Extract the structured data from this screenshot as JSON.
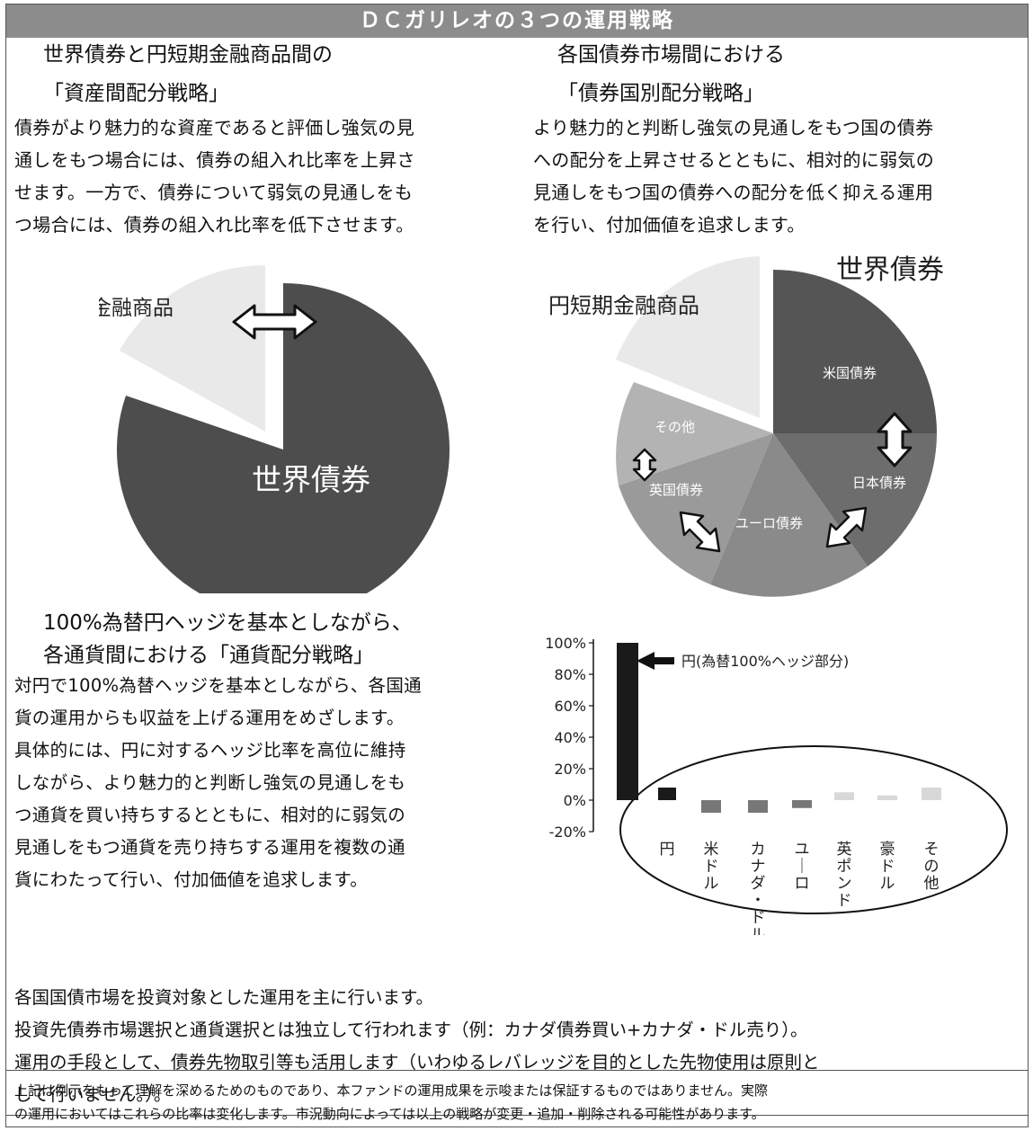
{
  "title": "ＤＣガリレオの３つの運用戦略",
  "strategy1": {
    "heading": [
      "世界債券と円短期金融商品間の",
      "「資産間配分戦略」"
    ],
    "body": [
      "債券がより魅力的な資産であると評価し強気の見",
      "通しをもつ場合には、債券の組入れ比率を上昇さ",
      "せます。一方で、債券について弱気の見通しをも",
      "つ場合には、債券の組入れ比率を低下させます。"
    ],
    "pie": {
      "label_short_term": "円短期金融商品",
      "label_world_bond": "世界債券"
    }
  },
  "strategy2": {
    "heading": [
      "各国債券市場間における",
      "「債券国別配分戦略」"
    ],
    "body": [
      "より魅力的と判断し強気の見通しをもつ国の債券",
      "への配分を上昇させるとともに、相対的に弱気の",
      "見通しをもつ国の債券への配分を低く抑える運用",
      "を行い、付加価値を追求します。"
    ],
    "pie": {
      "label_world_bond": "世界債券",
      "label_short_term": "円短期金融商品",
      "slices": [
        "米国債券",
        "日本債券",
        "ユーロ債券",
        "英国債券",
        "その他"
      ]
    }
  },
  "strategy3": {
    "heading": [
      "100%為替円ヘッジを基本としながら、",
      "各通貨間における「通貨配分戦略」"
    ],
    "body": [
      "対円で100%為替ヘッジを基本としながら、各国通",
      "貨の運用からも収益を上げる運用をめざします。",
      "具体的には、円に対するヘッジ比率を高位に維持",
      "しながら、より魅力的と判断し強気の見通しをも",
      "つ通貨を買い持ちするとともに、相対的に弱気の",
      "見通しをもつ通貨を売り持ちする運用を複数の通",
      "貨にわたって行い、付加価値を追求します。"
    ]
  },
  "chart_data": {
    "type": "bar",
    "categories": [
      "",
      "円",
      "米ドル",
      "カナダ・ドル",
      "ユーロ",
      "英ポンド",
      "豪ドル",
      "その他"
    ],
    "values": [
      100,
      8,
      -8,
      -8,
      -5,
      5,
      3,
      8
    ],
    "colors": [
      "#1a1a1a",
      "#1a1a1a",
      "#777777",
      "#777777",
      "#777777",
      "#d8d8d8",
      "#d8d8d8",
      "#d8d8d8"
    ],
    "ylim": [
      -20,
      100
    ],
    "yticks": [
      "-20%",
      "0%",
      "20%",
      "40%",
      "60%",
      "80%",
      "100%"
    ],
    "annotation": "円(為替100%ヘッジ部分)"
  },
  "notes": [
    "各国国債市場を投資対象とした運用を主に行います。",
    "投資先債券市場選択と通貨選択とは独立して行われます（例：カナダ債券買い+カナダ・ドル売り）。",
    "運用の手段として、債券先物取引等も活用します（いわゆるレバレッジを目的とした先物使用は原則と",
    "して行いません。）。"
  ],
  "disclaimer": [
    "上記は例示をもって理解を深めるためのものであり、本ファンドの運用成果を示唆または保証するものではありません。実際",
    "の運用においてはこれらの比率は変化します。市況動向によっては以上の戦略が変更・追加・削除される可能性があります。"
  ],
  "colors": {
    "title_bar": "#8c8c8c",
    "dark": "#4d4d4d",
    "light": "#e9e9e9",
    "us": "#555555",
    "japan": "#6d6d6d",
    "euro": "#8a8a8a",
    "uk": "#9a9a9a",
    "other": "#b3b3b3"
  }
}
